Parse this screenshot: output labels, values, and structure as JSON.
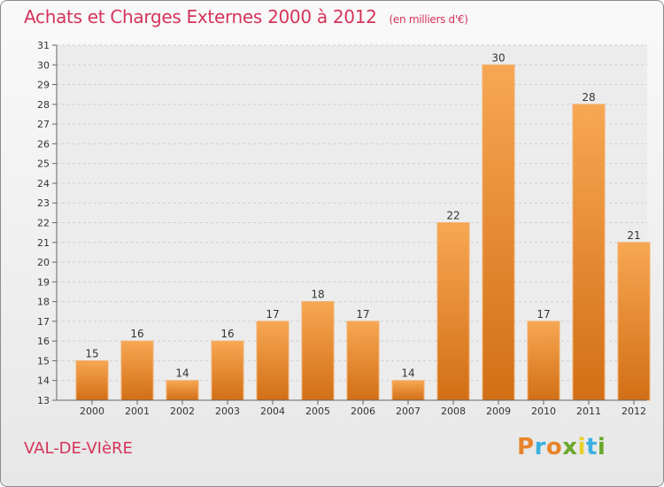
{
  "header": {
    "title": "Achats et Charges Externes 2000 à 2012",
    "unit": "(en milliers d'€)"
  },
  "footer": {
    "commune": "VAL-DE-VIèRE",
    "logo_text": "Proxiti"
  },
  "colors": {
    "title": "#d4345a",
    "bar_light": "#f7a752",
    "bar_dark": "#d26f16",
    "logo_letters": [
      "#e8842b",
      "#3bb0e0",
      "#e8842b",
      "#6aa82c",
      "#e8d02c",
      "#3bb0e0",
      "#6aa82c"
    ]
  },
  "chart_data": {
    "type": "bar",
    "categories": [
      "2000",
      "2001",
      "2002",
      "2003",
      "2004",
      "2005",
      "2006",
      "2007",
      "2008",
      "2009",
      "2010",
      "2011",
      "2012"
    ],
    "values": [
      15,
      16,
      14,
      16,
      17,
      18,
      17,
      14,
      22,
      30,
      17,
      28,
      21
    ],
    "title": "Achats et Charges Externes 2000 à 2012",
    "xlabel": "",
    "ylabel": "",
    "ylim": [
      13,
      31
    ],
    "yticks": [
      13,
      14,
      15,
      16,
      17,
      18,
      19,
      20,
      21,
      22,
      23,
      24,
      25,
      26,
      27,
      28,
      29,
      30,
      31
    ],
    "grid": true,
    "data_labels": true
  }
}
